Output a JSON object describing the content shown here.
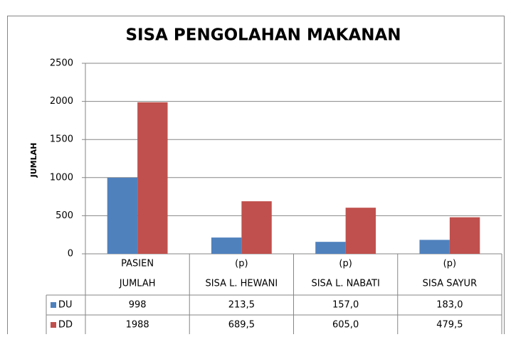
{
  "chart_data": {
    "type": "bar",
    "title": "SISA PENGOLAHAN MAKANAN",
    "y_label": "JUMLAH",
    "categories": [
      [
        "PASIEN",
        "JUMLAH"
      ],
      [
        "(p)",
        "SISA L. HEWANI"
      ],
      [
        "(p)",
        "SISA L. NABATI"
      ],
      [
        "(p)",
        "SISA SAYUR"
      ]
    ],
    "series": [
      {
        "name": "DU",
        "color": "#4f81bd",
        "values": [
          998,
          213.5,
          157.0,
          183.0
        ],
        "value_labels": [
          "998",
          "213,5",
          "157,0",
          "183,0"
        ]
      },
      {
        "name": "DD",
        "color": "#c0504d",
        "values": [
          1988,
          689.5,
          605.0,
          479.5
        ],
        "value_labels": [
          "1988",
          "689,5",
          "605,0",
          "479,5"
        ]
      }
    ],
    "ylim": [
      0,
      2500
    ],
    "yticks": [
      0,
      500,
      1000,
      1500,
      2000,
      2500
    ],
    "grid": true,
    "legend": "data-table"
  }
}
